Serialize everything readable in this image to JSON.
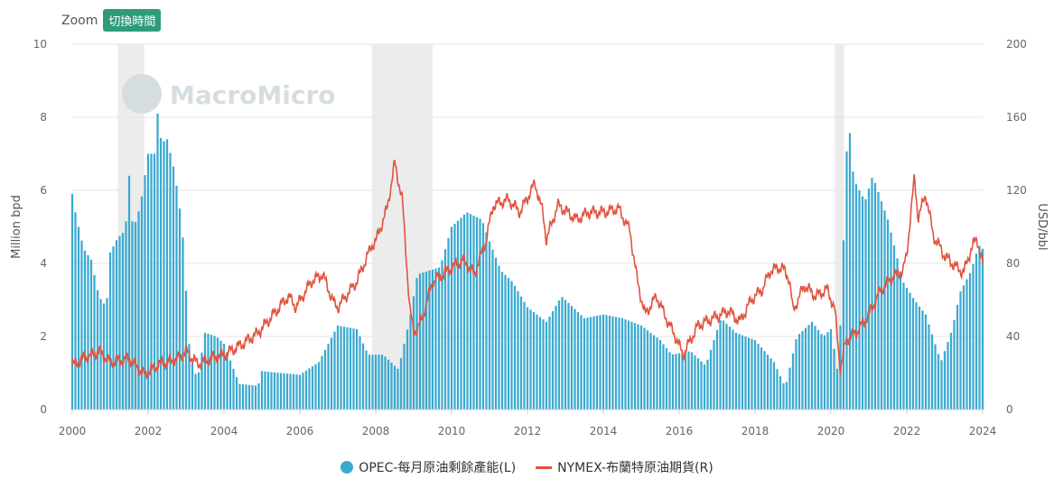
{
  "zoom": {
    "label": "Zoom",
    "button_label": "切換時間"
  },
  "watermark": "MacroMicro",
  "legend": {
    "bars_label": "OPEC-每月原油剩餘產能(L)",
    "line_label": "NYMEX-布蘭特原油期貨(R)"
  },
  "colors": {
    "bars": "#3aa9cf",
    "line": "#e0533f",
    "recession": "#ececec",
    "grid": "#e6e6e6"
  },
  "chart_data": {
    "type": "bar+line",
    "x_ticks": [
      "2000",
      "2002",
      "2004",
      "2006",
      "2008",
      "2010",
      "2012",
      "2014",
      "2016",
      "2018",
      "2020",
      "2022",
      "2024"
    ],
    "xlim": [
      2000,
      2024
    ],
    "y_left": {
      "label": "Million bpd",
      "range": [
        0,
        10
      ],
      "ticks": [
        "0",
        "2",
        "4",
        "6",
        "8",
        "10"
      ]
    },
    "y_right": {
      "label": "USD/bbl",
      "range": [
        0,
        200
      ],
      "ticks": [
        "0",
        "40",
        "80",
        "120",
        "160",
        "200"
      ]
    },
    "recession_periods": [
      [
        2001.2,
        2001.9
      ],
      [
        2007.9,
        2009.5
      ],
      [
        2020.1,
        2020.35
      ]
    ],
    "bars_series": {
      "name": "OPEC-每月原油剩餘產能(L)",
      "anchors": [
        [
          2000.0,
          5.9
        ],
        [
          2000.1,
          5.3
        ],
        [
          2000.3,
          4.4
        ],
        [
          2000.5,
          4.1
        ],
        [
          2000.7,
          3.1
        ],
        [
          2000.9,
          2.8
        ],
        [
          2001.0,
          4.3
        ],
        [
          2001.2,
          4.7
        ],
        [
          2001.4,
          4.9
        ],
        [
          2001.5,
          6.4
        ],
        [
          2001.6,
          4.9
        ],
        [
          2001.8,
          5.6
        ],
        [
          2002.0,
          7.0
        ],
        [
          2002.2,
          7.0
        ],
        [
          2002.25,
          8.1
        ],
        [
          2002.35,
          7.3
        ],
        [
          2002.5,
          7.4
        ],
        [
          2002.7,
          6.5
        ],
        [
          2002.9,
          5.0
        ],
        [
          2003.1,
          1.5
        ],
        [
          2003.3,
          0.8
        ],
        [
          2003.5,
          2.1
        ],
        [
          2003.8,
          2.0
        ],
        [
          2004.0,
          1.8
        ],
        [
          2004.4,
          0.7
        ],
        [
          2004.9,
          0.65
        ],
        [
          2005.0,
          1.05
        ],
        [
          2005.5,
          1.0
        ],
        [
          2006.0,
          0.95
        ],
        [
          2006.5,
          1.3
        ],
        [
          2007.0,
          2.3
        ],
        [
          2007.5,
          2.2
        ],
        [
          2007.8,
          1.5
        ],
        [
          2008.2,
          1.5
        ],
        [
          2008.6,
          1.1
        ],
        [
          2008.9,
          2.5
        ],
        [
          2009.1,
          3.7
        ],
        [
          2009.4,
          3.8
        ],
        [
          2009.7,
          3.9
        ],
        [
          2010.0,
          5.0
        ],
        [
          2010.4,
          5.4
        ],
        [
          2010.8,
          5.2
        ],
        [
          2011.0,
          4.6
        ],
        [
          2011.3,
          3.8
        ],
        [
          2011.6,
          3.5
        ],
        [
          2012.0,
          2.8
        ],
        [
          2012.5,
          2.4
        ],
        [
          2012.9,
          3.1
        ],
        [
          2013.5,
          2.5
        ],
        [
          2014.0,
          2.6
        ],
        [
          2014.5,
          2.5
        ],
        [
          2015.0,
          2.3
        ],
        [
          2015.5,
          1.9
        ],
        [
          2015.8,
          1.5
        ],
        [
          2016.3,
          1.6
        ],
        [
          2016.7,
          1.2
        ],
        [
          2017.1,
          2.5
        ],
        [
          2017.5,
          2.1
        ],
        [
          2018.0,
          1.9
        ],
        [
          2018.5,
          1.3
        ],
        [
          2018.8,
          0.6
        ],
        [
          2019.1,
          2.0
        ],
        [
          2019.5,
          2.4
        ],
        [
          2019.8,
          2.0
        ],
        [
          2020.0,
          2.2
        ],
        [
          2020.2,
          0.9
        ],
        [
          2020.4,
          6.5
        ],
        [
          2020.45,
          8.2
        ],
        [
          2020.6,
          6.3
        ],
        [
          2020.9,
          5.7
        ],
        [
          2021.1,
          6.4
        ],
        [
          2021.5,
          5.2
        ],
        [
          2021.9,
          3.5
        ],
        [
          2022.2,
          3.0
        ],
        [
          2022.5,
          2.6
        ],
        [
          2022.9,
          1.3
        ],
        [
          2023.2,
          2.2
        ],
        [
          2023.4,
          3.2
        ],
        [
          2023.7,
          3.8
        ],
        [
          2023.9,
          4.5
        ],
        [
          2024.0,
          4.4
        ]
      ]
    },
    "line_series": {
      "name": "NYMEX-布蘭特原油期貨(R)",
      "anchors": [
        [
          2000.0,
          24
        ],
        [
          2000.3,
          28
        ],
        [
          2000.7,
          32
        ],
        [
          2001.0,
          26
        ],
        [
          2001.5,
          28
        ],
        [
          2001.9,
          19
        ],
        [
          2002.3,
          25
        ],
        [
          2002.8,
          28
        ],
        [
          2003.0,
          32
        ],
        [
          2003.3,
          25
        ],
        [
          2003.8,
          29
        ],
        [
          2004.0,
          30
        ],
        [
          2004.5,
          36
        ],
        [
          2004.9,
          42
        ],
        [
          2005.3,
          52
        ],
        [
          2005.7,
          62
        ],
        [
          2005.9,
          56
        ],
        [
          2006.3,
          70
        ],
        [
          2006.6,
          74
        ],
        [
          2006.9,
          58
        ],
        [
          2007.0,
          56
        ],
        [
          2007.5,
          70
        ],
        [
          2007.9,
          90
        ],
        [
          2008.0,
          92
        ],
        [
          2008.3,
          110
        ],
        [
          2008.5,
          135
        ],
        [
          2008.7,
          115
        ],
        [
          2008.9,
          55
        ],
        [
          2009.0,
          42
        ],
        [
          2009.2,
          48
        ],
        [
          2009.5,
          70
        ],
        [
          2009.9,
          76
        ],
        [
          2010.3,
          82
        ],
        [
          2010.6,
          74
        ],
        [
          2010.9,
          92
        ],
        [
          2011.1,
          112
        ],
        [
          2011.5,
          115
        ],
        [
          2011.8,
          108
        ],
        [
          2012.2,
          124
        ],
        [
          2012.4,
          108
        ],
        [
          2012.5,
          93
        ],
        [
          2012.8,
          112
        ],
        [
          2013.3,
          104
        ],
        [
          2013.6,
          108
        ],
        [
          2014.0,
          108
        ],
        [
          2014.4,
          110
        ],
        [
          2014.7,
          98
        ],
        [
          2014.9,
          70
        ],
        [
          2015.1,
          52
        ],
        [
          2015.4,
          62
        ],
        [
          2015.7,
          48
        ],
        [
          2015.9,
          40
        ],
        [
          2016.1,
          30
        ],
        [
          2016.5,
          46
        ],
        [
          2016.9,
          50
        ],
        [
          2017.3,
          54
        ],
        [
          2017.6,
          48
        ],
        [
          2017.9,
          60
        ],
        [
          2018.2,
          66
        ],
        [
          2018.4,
          76
        ],
        [
          2018.7,
          78
        ],
        [
          2018.9,
          72
        ],
        [
          2019.0,
          54
        ],
        [
          2019.3,
          68
        ],
        [
          2019.6,
          62
        ],
        [
          2019.9,
          66
        ],
        [
          2020.1,
          55
        ],
        [
          2020.25,
          22
        ],
        [
          2020.4,
          38
        ],
        [
          2020.7,
          43
        ],
        [
          2021.0,
          52
        ],
        [
          2021.3,
          65
        ],
        [
          2021.6,
          72
        ],
        [
          2021.9,
          76
        ],
        [
          2022.0,
          85
        ],
        [
          2022.2,
          127
        ],
        [
          2022.3,
          105
        ],
        [
          2022.5,
          118
        ],
        [
          2022.7,
          95
        ],
        [
          2022.9,
          88
        ],
        [
          2023.0,
          84
        ],
        [
          2023.3,
          78
        ],
        [
          2023.5,
          75
        ],
        [
          2023.7,
          88
        ],
        [
          2023.85,
          94
        ],
        [
          2024.0,
          79
        ]
      ]
    }
  }
}
